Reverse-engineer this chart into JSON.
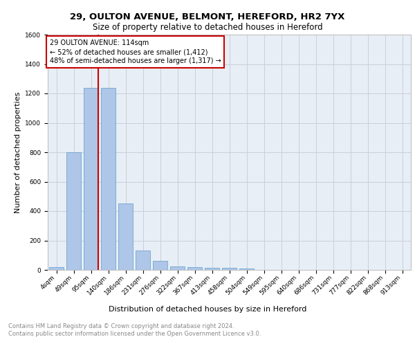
{
  "title1": "29, OULTON AVENUE, BELMONT, HEREFORD, HR2 7YX",
  "title2": "Size of property relative to detached houses in Hereford",
  "xlabel": "Distribution of detached houses by size in Hereford",
  "ylabel": "Number of detached properties",
  "categories": [
    "4sqm",
    "49sqm",
    "95sqm",
    "140sqm",
    "186sqm",
    "231sqm",
    "276sqm",
    "322sqm",
    "367sqm",
    "413sqm",
    "458sqm",
    "504sqm",
    "549sqm",
    "595sqm",
    "640sqm",
    "686sqm",
    "731sqm",
    "777sqm",
    "822sqm",
    "868sqm",
    "913sqm"
  ],
  "values": [
    20,
    800,
    1240,
    1240,
    450,
    130,
    60,
    25,
    20,
    15,
    15,
    10,
    0,
    0,
    0,
    0,
    0,
    0,
    0,
    0,
    0
  ],
  "bar_color": "#aec6e8",
  "bar_edge_color": "#5a9ec9",
  "vline_x": 2.42,
  "annotation_text": "29 OULTON AVENUE: 114sqm\n← 52% of detached houses are smaller (1,412)\n48% of semi-detached houses are larger (1,317) →",
  "annotation_box_color": "#ffffff",
  "annotation_box_edge_color": "#cc0000",
  "vline_color": "#cc0000",
  "ylim": [
    0,
    1600
  ],
  "yticks": [
    0,
    200,
    400,
    600,
    800,
    1000,
    1200,
    1400,
    1600
  ],
  "grid_color": "#c8d0dc",
  "bg_color": "#e8eef5",
  "footer_line1": "Contains HM Land Registry data © Crown copyright and database right 2024.",
  "footer_line2": "Contains public sector information licensed under the Open Government Licence v3.0.",
  "title1_fontsize": 9.5,
  "title2_fontsize": 8.5,
  "tick_fontsize": 6.5,
  "label_fontsize": 8,
  "annotation_fontsize": 7,
  "footer_fontsize": 6,
  "ylabel_fontsize": 8
}
